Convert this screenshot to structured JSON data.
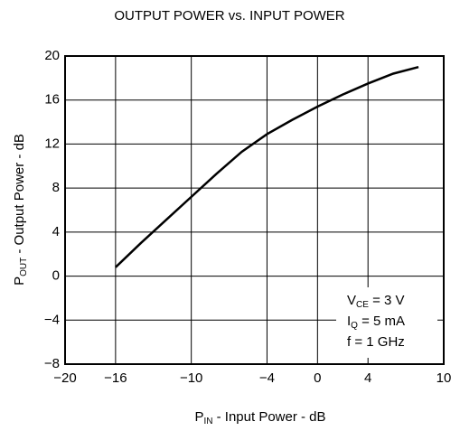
{
  "chart_data": {
    "type": "line",
    "title": "OUTPUT POWER vs. INPUT POWER",
    "x_label": [
      "P",
      "IN",
      " - Input Power - dB"
    ],
    "y_label": [
      "P",
      "OUT",
      " - Output Power - dB"
    ],
    "annotations": [
      [
        "V",
        "CE",
        " = 3 V"
      ],
      [
        "I",
        "Q",
        " = 5 mA"
      ],
      [
        "f = 1 GHz"
      ]
    ],
    "x": [
      -16,
      -14,
      -12,
      -10,
      -8,
      -6,
      -4,
      -2,
      0,
      2,
      4,
      6,
      8
    ],
    "series": [
      {
        "color": "#000000",
        "values": [
          0.8,
          3,
          5.1,
          7.2,
          9.3,
          11.3,
          12.9,
          14.2,
          15.4,
          16.5,
          17.5,
          18.4,
          19.0
        ]
      }
    ],
    "xlim": [
      -20,
      10
    ],
    "xticks": [
      {
        "value": -20,
        "label": "−20"
      },
      {
        "value": -16,
        "label": "−16"
      },
      {
        "value": -10,
        "label": "−10"
      },
      {
        "value": -4,
        "label": "−4"
      },
      0,
      4,
      10
    ],
    "ylim": [
      -8,
      20
    ],
    "yticks": [
      {
        "value": -8,
        "label": "−8"
      },
      {
        "value": -4,
        "label": "−4"
      },
      0,
      4,
      8,
      12,
      16,
      20
    ],
    "grid": true
  }
}
